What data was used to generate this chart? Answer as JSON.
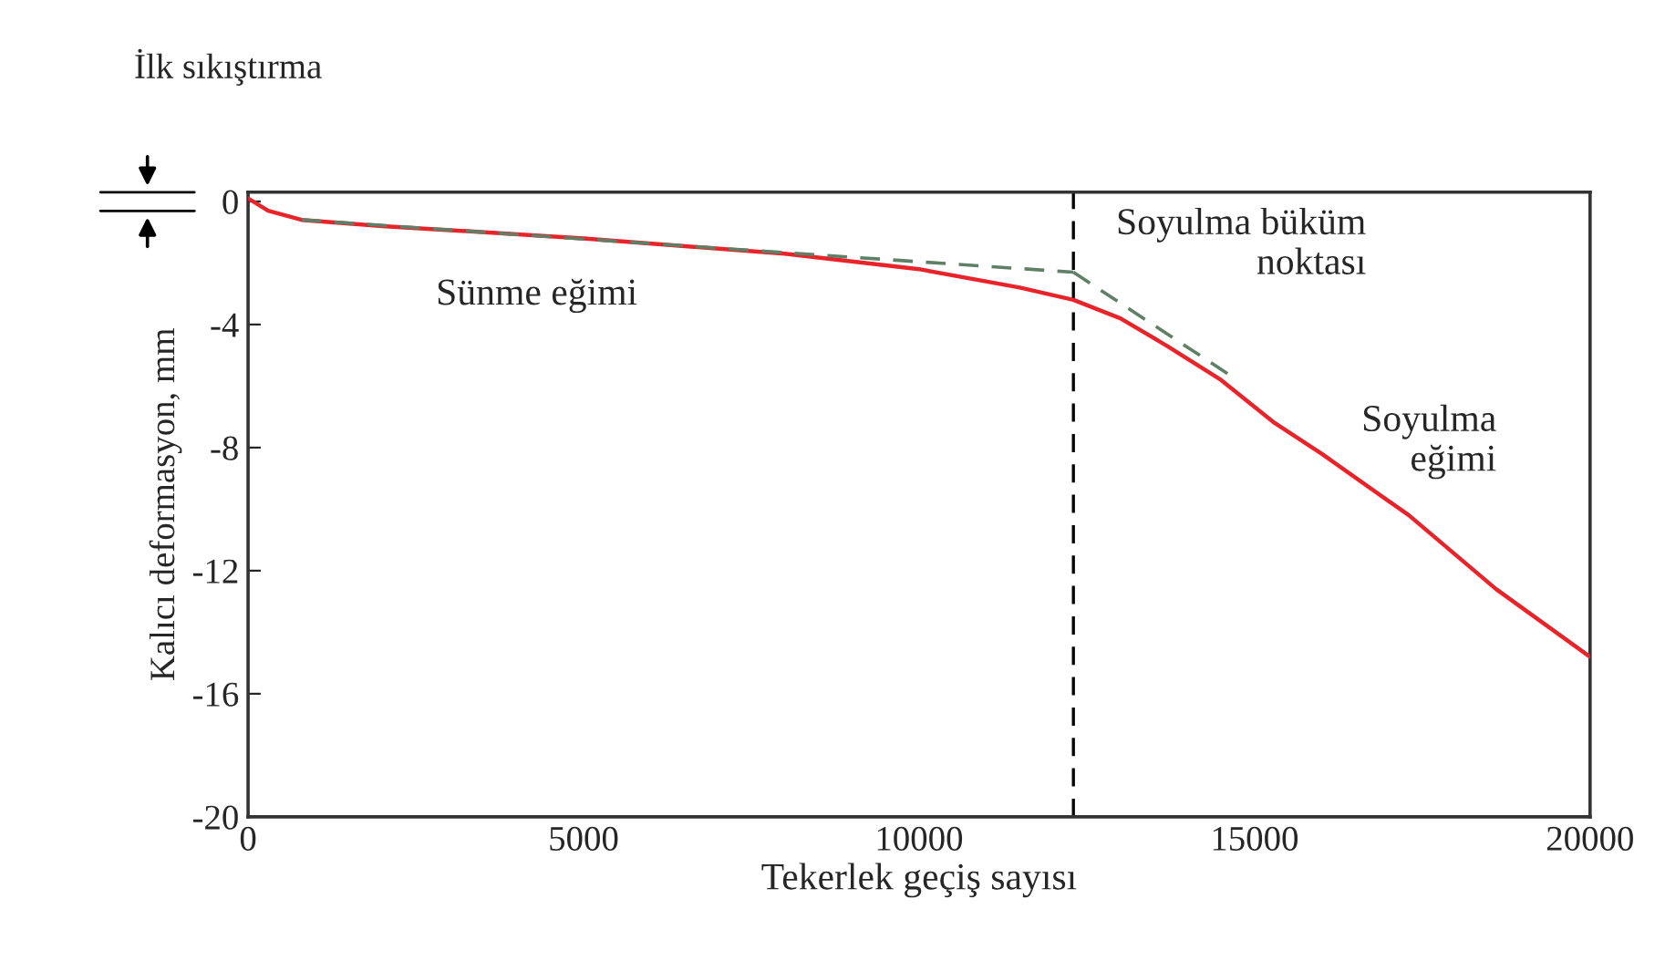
{
  "chart_data": {
    "type": "line",
    "xlabel": "Tekerlek geçiş sayısı",
    "ylabel": "Kalıcı deformasyon, mm",
    "xlim": [
      0,
      20000
    ],
    "ylim": [
      -20,
      0.3
    ],
    "xticks": [
      0,
      5000,
      10000,
      15000,
      20000
    ],
    "yticks": [
      0,
      -4,
      -8,
      -12,
      -16,
      -20
    ],
    "grid": false,
    "legend": false,
    "marker": "none",
    "series": [
      {
        "color": "#e8232a",
        "line_style": "solid",
        "x": [
          0,
          300,
          800,
          2000,
          5000,
          8000,
          10000,
          11500,
          12300,
          13000,
          13700,
          14500,
          15300,
          16000,
          17300,
          18600,
          20000
        ],
        "values": [
          0.1,
          -0.3,
          -0.6,
          -0.8,
          -1.2,
          -1.7,
          -2.2,
          -2.8,
          -3.2,
          -3.8,
          -4.7,
          -5.8,
          -7.2,
          -8.2,
          -10.2,
          -12.6,
          -14.8
        ]
      },
      {
        "color": "#5f7f66",
        "line_style": "dashed",
        "x": [
          800,
          12300
        ],
        "values": [
          -0.6,
          -2.3
        ]
      },
      {
        "color": "#5f7f66",
        "line_style": "dashed",
        "x": [
          12300,
          14600
        ],
        "values": [
          -2.3,
          -5.6
        ]
      }
    ],
    "ref_lines": [
      {
        "axis": "x",
        "value": 12300,
        "label": null,
        "color": "#000000",
        "line_style": "dashed"
      }
    ],
    "annotations": [
      "İlk sıkıştırma",
      "Sünme eğimi",
      "Soyulma büküm\nnoktası",
      "Soyulma\neğimi"
    ]
  }
}
